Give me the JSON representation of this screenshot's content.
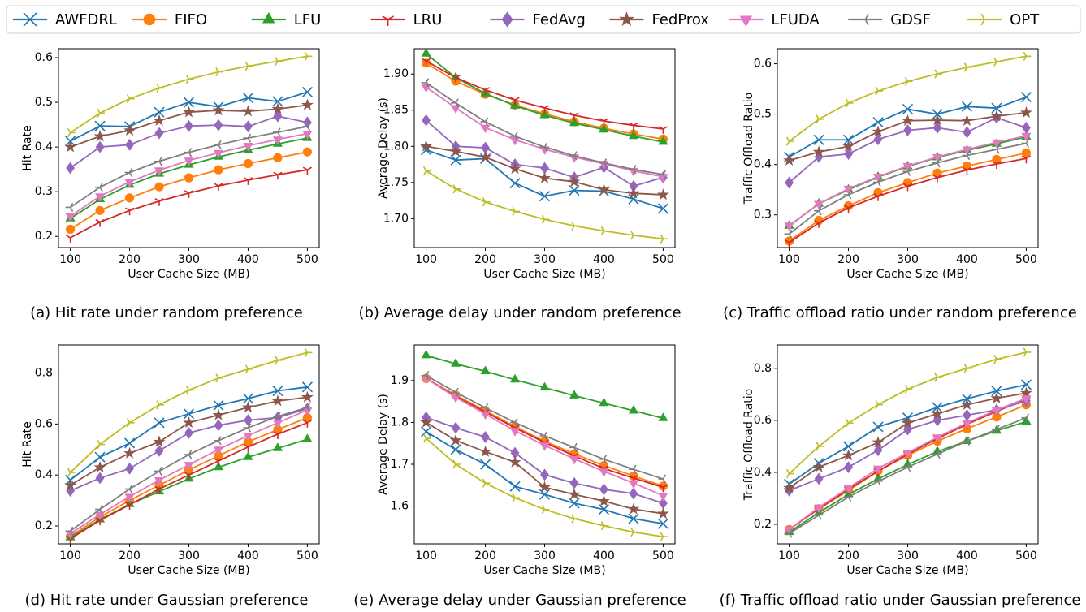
{
  "legend": {
    "series": [
      {
        "name": "AWFDRL",
        "color": "#1f77b4",
        "marker": "x"
      },
      {
        "name": "FIFO",
        "color": "#ff7f0e",
        "marker": "o"
      },
      {
        "name": "LFU",
        "color": "#2ca02c",
        "marker": "^"
      },
      {
        "name": "LRU",
        "color": "#d62728",
        "marker": "1"
      },
      {
        "name": "FedAvg",
        "color": "#9467bd",
        "marker": "D"
      },
      {
        "name": "FedProx",
        "color": "#8c564b",
        "marker": "*"
      },
      {
        "name": "LFUDA",
        "color": "#e377c2",
        "marker": "v"
      },
      {
        "name": "GDSF",
        "color": "#7f7f7f",
        "marker": "3"
      },
      {
        "name": "OPT",
        "color": "#bcbd22",
        "marker": "4"
      }
    ]
  },
  "chart_data": [
    {
      "type": "line",
      "caption": "(a) Hit rate under random preference",
      "xlabel": "User Cache Size (MB)",
      "ylabel": "Hit Rate",
      "x": [
        100,
        150,
        200,
        250,
        300,
        350,
        400,
        450,
        500
      ],
      "xlim": [
        80,
        520
      ],
      "xticks": [
        100,
        200,
        300,
        400,
        500
      ],
      "ylim": [
        0.175,
        0.62
      ],
      "yticks": [
        0.2,
        0.3,
        0.4,
        0.5,
        0.6
      ],
      "series": [
        {
          "values": [
            0.413,
            0.447,
            0.446,
            0.478,
            0.5,
            0.49,
            0.51,
            0.502,
            0.523
          ]
        },
        {
          "values": [
            0.216,
            0.258,
            0.286,
            0.311,
            0.331,
            0.349,
            0.363,
            0.376,
            0.389
          ]
        },
        {
          "values": [
            0.24,
            0.283,
            0.315,
            0.34,
            0.36,
            0.378,
            0.393,
            0.407,
            0.42
          ]
        },
        {
          "values": [
            0.197,
            0.232,
            0.258,
            0.279,
            0.297,
            0.313,
            0.326,
            0.338,
            0.349
          ]
        },
        {
          "values": [
            0.353,
            0.4,
            0.405,
            0.431,
            0.447,
            0.449,
            0.446,
            0.469,
            0.455
          ]
        },
        {
          "values": [
            0.4,
            0.424,
            0.437,
            0.459,
            0.478,
            0.482,
            0.48,
            0.485,
            0.494
          ]
        },
        {
          "values": [
            0.245,
            0.29,
            0.322,
            0.348,
            0.37,
            0.387,
            0.403,
            0.417,
            0.43
          ]
        },
        {
          "values": [
            0.265,
            0.31,
            0.343,
            0.368,
            0.388,
            0.405,
            0.42,
            0.433,
            0.446
          ]
        },
        {
          "values": [
            0.432,
            0.476,
            0.508,
            0.532,
            0.552,
            0.568,
            0.581,
            0.592,
            0.603
          ]
        }
      ]
    },
    {
      "type": "line",
      "caption": "(b) Average delay under random preference",
      "xlabel": "User Cache Size (MB)",
      "ylabel": "Average Delay (s)",
      "x": [
        100,
        150,
        200,
        250,
        300,
        350,
        400,
        450,
        500
      ],
      "xlim": [
        80,
        520
      ],
      "xticks": [
        100,
        200,
        300,
        400,
        500
      ],
      "ylim": [
        1.66,
        1.935
      ],
      "yticks": [
        {
          "value": 1.7,
          "label": "1.70"
        },
        {
          "value": 1.75,
          "label": "1.75"
        },
        {
          "value": 1.8,
          "label": "1.80"
        },
        {
          "value": 1.85,
          "label": "1.85"
        },
        {
          "value": 1.9,
          "label": "1.90"
        }
      ],
      "series": [
        {
          "values": [
            1.795,
            1.781,
            1.783,
            1.749,
            1.731,
            1.739,
            1.738,
            1.727,
            1.714
          ]
        },
        {
          "values": [
            1.915,
            1.89,
            1.872,
            1.857,
            1.845,
            1.834,
            1.825,
            1.817,
            1.81
          ]
        },
        {
          "values": [
            1.928,
            1.895,
            1.873,
            1.856,
            1.843,
            1.832,
            1.823,
            1.814,
            1.806
          ]
        },
        {
          "values": [
            1.918,
            1.895,
            1.878,
            1.864,
            1.853,
            1.843,
            1.835,
            1.829,
            1.824
          ]
        },
        {
          "values": [
            1.836,
            1.8,
            1.798,
            1.775,
            1.77,
            1.757,
            1.771,
            1.745,
            1.757
          ]
        },
        {
          "values": [
            1.8,
            1.793,
            1.785,
            1.769,
            1.756,
            1.751,
            1.74,
            1.735,
            1.733
          ]
        },
        {
          "values": [
            1.882,
            1.853,
            1.826,
            1.809,
            1.796,
            1.785,
            1.776,
            1.766,
            1.758
          ]
        },
        {
          "values": [
            1.888,
            1.86,
            1.834,
            1.814,
            1.799,
            1.787,
            1.777,
            1.768,
            1.761
          ]
        },
        {
          "values": [
            1.766,
            1.741,
            1.723,
            1.71,
            1.699,
            1.69,
            1.683,
            1.677,
            1.672
          ]
        }
      ]
    },
    {
      "type": "line",
      "caption": "(c) Traffic offload ratio under random preference",
      "xlabel": "User Cache Size (MB)",
      "ylabel": "Traffic Offload Ratio",
      "x": [
        100,
        150,
        200,
        250,
        300,
        350,
        400,
        450,
        500
      ],
      "xlim": [
        80,
        520
      ],
      "xticks": [
        100,
        200,
        300,
        400,
        500
      ],
      "ylim": [
        0.235,
        0.63
      ],
      "yticks": [
        0.3,
        0.4,
        0.5,
        0.6
      ],
      "series": [
        {
          "values": [
            0.415,
            0.449,
            0.449,
            0.484,
            0.51,
            0.5,
            0.515,
            0.512,
            0.534
          ]
        },
        {
          "values": [
            0.248,
            0.289,
            0.318,
            0.344,
            0.364,
            0.383,
            0.397,
            0.41,
            0.423
          ]
        },
        {
          "values": [
            0.278,
            0.322,
            0.35,
            0.375,
            0.396,
            0.414,
            0.428,
            0.441,
            0.455
          ]
        },
        {
          "values": [
            0.245,
            0.284,
            0.314,
            0.337,
            0.357,
            0.374,
            0.389,
            0.401,
            0.412
          ]
        },
        {
          "values": [
            0.364,
            0.415,
            0.421,
            0.45,
            0.468,
            0.473,
            0.464,
            0.493,
            0.473
          ]
        },
        {
          "values": [
            0.408,
            0.425,
            0.436,
            0.465,
            0.487,
            0.488,
            0.487,
            0.496,
            0.503
          ]
        },
        {
          "values": [
            0.279,
            0.322,
            0.352,
            0.376,
            0.397,
            0.415,
            0.43,
            0.444,
            0.457
          ]
        },
        {
          "values": [
            0.262,
            0.308,
            0.34,
            0.365,
            0.386,
            0.403,
            0.418,
            0.43,
            0.442
          ]
        },
        {
          "values": [
            0.446,
            0.49,
            0.522,
            0.546,
            0.565,
            0.58,
            0.593,
            0.604,
            0.615
          ]
        }
      ]
    },
    {
      "type": "line",
      "caption": "(d) Hit rate under Gaussian preference",
      "xlabel": "User Cache Size (MB)",
      "ylabel": "Hit Rate",
      "x": [
        100,
        150,
        200,
        250,
        300,
        350,
        400,
        450,
        500
      ],
      "xlim": [
        80,
        520
      ],
      "xticks": [
        100,
        200,
        300,
        400,
        500
      ],
      "ylim": [
        0.13,
        0.91
      ],
      "yticks": [
        0.2,
        0.4,
        0.6,
        0.8
      ],
      "series": [
        {
          "values": [
            0.38,
            0.47,
            0.525,
            0.605,
            0.64,
            0.673,
            0.7,
            0.73,
            0.745
          ]
        },
        {
          "values": [
            0.16,
            0.235,
            0.3,
            0.36,
            0.42,
            0.475,
            0.53,
            0.578,
            0.625
          ]
        },
        {
          "values": [
            0.155,
            0.225,
            0.285,
            0.335,
            0.385,
            0.43,
            0.47,
            0.505,
            0.54
          ]
        },
        {
          "values": [
            0.15,
            0.222,
            0.283,
            0.345,
            0.4,
            0.455,
            0.51,
            0.56,
            0.605
          ]
        },
        {
          "values": [
            0.338,
            0.388,
            0.425,
            0.495,
            0.565,
            0.595,
            0.615,
            0.625,
            0.66
          ]
        },
        {
          "values": [
            0.36,
            0.43,
            0.485,
            0.53,
            0.605,
            0.635,
            0.665,
            0.69,
            0.705
          ]
        },
        {
          "values": [
            0.17,
            0.245,
            0.315,
            0.38,
            0.44,
            0.5,
            0.555,
            0.605,
            0.655
          ]
        },
        {
          "values": [
            0.18,
            0.265,
            0.345,
            0.415,
            0.48,
            0.535,
            0.585,
            0.63,
            0.665
          ]
        },
        {
          "values": [
            0.41,
            0.52,
            0.605,
            0.675,
            0.733,
            0.78,
            0.815,
            0.85,
            0.88
          ]
        }
      ]
    },
    {
      "type": "line",
      "caption": "(e) Average delay under Gaussian preference",
      "xlabel": "User Cache Size (MB)",
      "ylabel": "Average Delay (s)",
      "x": [
        100,
        150,
        200,
        250,
        300,
        350,
        400,
        450,
        500
      ],
      "xlim": [
        80,
        520
      ],
      "xticks": [
        100,
        200,
        300,
        400,
        500
      ],
      "ylim": [
        1.51,
        1.985
      ],
      "yticks": [
        1.6,
        1.7,
        1.8,
        1.9
      ],
      "series": [
        {
          "values": [
            1.778,
            1.735,
            1.7,
            1.647,
            1.628,
            1.607,
            1.592,
            1.57,
            1.558
          ]
        },
        {
          "values": [
            1.905,
            1.865,
            1.828,
            1.79,
            1.755,
            1.725,
            1.697,
            1.672,
            1.648
          ]
        },
        {
          "values": [
            1.96,
            1.94,
            1.922,
            1.902,
            1.883,
            1.864,
            1.846,
            1.828,
            1.81
          ]
        },
        {
          "values": [
            1.905,
            1.862,
            1.825,
            1.787,
            1.752,
            1.72,
            1.69,
            1.667,
            1.645
          ]
        },
        {
          "values": [
            1.812,
            1.787,
            1.765,
            1.727,
            1.675,
            1.655,
            1.64,
            1.63,
            1.607
          ]
        },
        {
          "values": [
            1.8,
            1.757,
            1.73,
            1.705,
            1.645,
            1.628,
            1.612,
            1.593,
            1.582
          ]
        },
        {
          "values": [
            1.905,
            1.86,
            1.82,
            1.78,
            1.745,
            1.713,
            1.683,
            1.655,
            1.625
          ]
        },
        {
          "values": [
            1.912,
            1.872,
            1.835,
            1.8,
            1.768,
            1.74,
            1.712,
            1.688,
            1.665
          ]
        },
        {
          "values": [
            1.762,
            1.7,
            1.655,
            1.62,
            1.592,
            1.57,
            1.553,
            1.538,
            1.527
          ]
        }
      ]
    },
    {
      "type": "line",
      "caption": "(f) Traffic offload ratio under Gaussian preference",
      "xlabel": "User Cache Size (MB)",
      "ylabel": "Traffic Offload Ratio",
      "x": [
        100,
        150,
        200,
        250,
        300,
        350,
        400,
        450,
        500
      ],
      "xlim": [
        80,
        520
      ],
      "xticks": [
        100,
        200,
        300,
        400,
        500
      ],
      "ylim": [
        0.125,
        0.89
      ],
      "yticks": [
        0.2,
        0.4,
        0.6,
        0.8
      ],
      "series": [
        {
          "values": [
            0.355,
            0.435,
            0.5,
            0.575,
            0.61,
            0.65,
            0.683,
            0.713,
            0.737
          ]
        },
        {
          "values": [
            0.18,
            0.26,
            0.33,
            0.405,
            0.465,
            0.52,
            0.568,
            0.613,
            0.66
          ]
        },
        {
          "values": [
            0.17,
            0.245,
            0.315,
            0.375,
            0.43,
            0.48,
            0.52,
            0.56,
            0.595
          ]
        },
        {
          "values": [
            0.18,
            0.26,
            0.335,
            0.405,
            0.47,
            0.53,
            0.585,
            0.635,
            0.68
          ]
        },
        {
          "values": [
            0.33,
            0.375,
            0.42,
            0.485,
            0.565,
            0.6,
            0.62,
            0.64,
            0.675
          ]
        },
        {
          "values": [
            0.34,
            0.42,
            0.465,
            0.515,
            0.59,
            0.625,
            0.66,
            0.685,
            0.705
          ]
        },
        {
          "values": [
            0.18,
            0.265,
            0.34,
            0.415,
            0.475,
            0.535,
            0.59,
            0.64,
            0.685
          ]
        },
        {
          "values": [
            0.165,
            0.235,
            0.305,
            0.365,
            0.42,
            0.47,
            0.52,
            0.565,
            0.61
          ]
        },
        {
          "values": [
            0.395,
            0.5,
            0.59,
            0.66,
            0.72,
            0.765,
            0.8,
            0.835,
            0.862
          ]
        }
      ]
    }
  ]
}
